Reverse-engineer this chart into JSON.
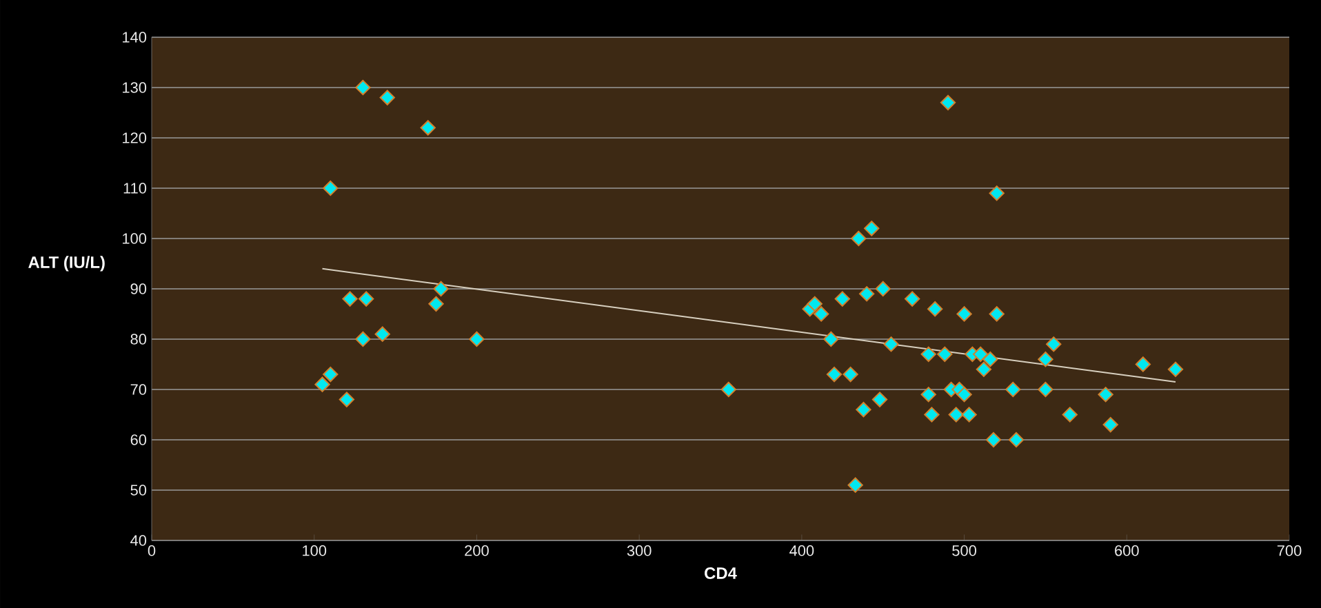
{
  "chart_data": {
    "type": "scatter",
    "xlabel": "CD4",
    "ylabel": "ALT (IU/L)",
    "xlim": [
      0,
      700
    ],
    "xticks": [
      0,
      100,
      200,
      300,
      400,
      500,
      600,
      700
    ],
    "ylim": [
      40,
      140
    ],
    "yticks": [
      40,
      50,
      60,
      70,
      80,
      90,
      100,
      110,
      120,
      130,
      140
    ],
    "grid": "y",
    "marker": "diamond",
    "series": [
      {
        "color": "#00e8f0",
        "x": [
          105,
          110,
          110,
          120,
          122,
          130,
          130,
          132,
          142,
          145,
          170,
          175,
          178,
          200,
          355,
          405,
          408,
          412,
          418,
          420,
          425,
          430,
          433,
          435,
          438,
          440,
          443,
          448,
          450,
          455,
          468,
          478,
          478,
          480,
          482,
          490,
          488,
          492,
          495,
          497,
          500,
          500,
          503,
          505,
          510,
          512,
          516,
          518,
          520,
          520,
          530,
          532,
          550,
          550,
          555,
          565,
          587,
          590,
          610,
          630
        ],
        "values": [
          71,
          73,
          110,
          68,
          88,
          80,
          130,
          88,
          81,
          128,
          122,
          87,
          90,
          80,
          70,
          86,
          87,
          85,
          80,
          73,
          88,
          73,
          51,
          100,
          66,
          89,
          102,
          68,
          90,
          79,
          88,
          77,
          69,
          65,
          86,
          127,
          77,
          70,
          65,
          70,
          85,
          69,
          65,
          77,
          77,
          74,
          76,
          60,
          85,
          109,
          70,
          60,
          70,
          76,
          79,
          65,
          69,
          63,
          75,
          74
        ]
      },
      {
        "type": "line",
        "marker": "none",
        "color": "#d8d0c0",
        "x": [
          105,
          630
        ],
        "values": [
          94,
          71.5
        ]
      }
    ]
  }
}
